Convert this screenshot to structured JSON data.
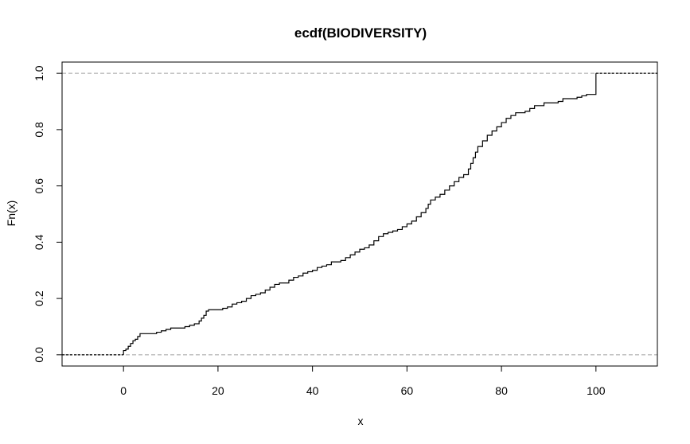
{
  "chart_data": {
    "type": "line",
    "title": "ecdf(BIODIVERSITY)",
    "xlabel": "x",
    "ylabel": "Fn(x)",
    "xlim": [
      -13,
      113
    ],
    "ylim": [
      -0.04,
      1.04
    ],
    "x_ticks": [
      0,
      20,
      40,
      60,
      80,
      100
    ],
    "y_ticks": [
      0.0,
      0.2,
      0.4,
      0.6,
      0.8,
      1.0
    ],
    "x_tick_labels": [
      "0",
      "20",
      "40",
      "60",
      "80",
      "100"
    ],
    "y_tick_labels": [
      "0.0",
      "0.2",
      "0.4",
      "0.6",
      "0.8",
      "1.0"
    ],
    "reference_lines": [
      0,
      1
    ],
    "grid": false,
    "series": [
      {
        "points": [
          [
            0,
            0.015
          ],
          [
            0.5,
            0.02
          ],
          [
            1,
            0.03
          ],
          [
            1.5,
            0.04
          ],
          [
            2,
            0.05
          ],
          [
            2.5,
            0.055
          ],
          [
            3,
            0.065
          ],
          [
            3.5,
            0.075
          ],
          [
            7,
            0.08
          ],
          [
            8,
            0.085
          ],
          [
            9,
            0.09
          ],
          [
            10,
            0.095
          ],
          [
            13,
            0.1
          ],
          [
            14,
            0.105
          ],
          [
            15,
            0.11
          ],
          [
            16,
            0.12
          ],
          [
            16.5,
            0.13
          ],
          [
            17,
            0.14
          ],
          [
            17.5,
            0.155
          ],
          [
            18,
            0.16
          ],
          [
            21,
            0.165
          ],
          [
            22,
            0.17
          ],
          [
            23,
            0.18
          ],
          [
            24,
            0.185
          ],
          [
            25,
            0.19
          ],
          [
            26,
            0.2
          ],
          [
            27,
            0.21
          ],
          [
            28,
            0.215
          ],
          [
            29,
            0.22
          ],
          [
            30,
            0.23
          ],
          [
            31,
            0.24
          ],
          [
            32,
            0.25
          ],
          [
            33,
            0.255
          ],
          [
            35,
            0.265
          ],
          [
            36,
            0.275
          ],
          [
            37,
            0.28
          ],
          [
            38,
            0.29
          ],
          [
            39,
            0.295
          ],
          [
            40,
            0.3
          ],
          [
            41,
            0.31
          ],
          [
            42,
            0.315
          ],
          [
            43,
            0.32
          ],
          [
            44,
            0.33
          ],
          [
            46,
            0.335
          ],
          [
            47,
            0.345
          ],
          [
            48,
            0.355
          ],
          [
            49,
            0.365
          ],
          [
            50,
            0.375
          ],
          [
            51,
            0.38
          ],
          [
            52,
            0.39
          ],
          [
            53,
            0.405
          ],
          [
            54,
            0.42
          ],
          [
            55,
            0.43
          ],
          [
            56,
            0.435
          ],
          [
            57,
            0.44
          ],
          [
            58,
            0.445
          ],
          [
            59,
            0.455
          ],
          [
            60,
            0.465
          ],
          [
            61,
            0.475
          ],
          [
            62,
            0.49
          ],
          [
            63,
            0.505
          ],
          [
            64,
            0.52
          ],
          [
            64.5,
            0.535
          ],
          [
            65,
            0.55
          ],
          [
            66,
            0.56
          ],
          [
            67,
            0.57
          ],
          [
            68,
            0.585
          ],
          [
            69,
            0.6
          ],
          [
            70,
            0.615
          ],
          [
            71,
            0.63
          ],
          [
            72,
            0.64
          ],
          [
            73,
            0.66
          ],
          [
            73.5,
            0.68
          ],
          [
            74,
            0.7
          ],
          [
            74.5,
            0.72
          ],
          [
            75,
            0.74
          ],
          [
            76,
            0.76
          ],
          [
            77,
            0.78
          ],
          [
            78,
            0.795
          ],
          [
            79,
            0.81
          ],
          [
            80,
            0.825
          ],
          [
            81,
            0.84
          ],
          [
            82,
            0.85
          ],
          [
            83,
            0.86
          ],
          [
            85,
            0.865
          ],
          [
            86,
            0.875
          ],
          [
            87,
            0.885
          ],
          [
            89,
            0.895
          ],
          [
            92,
            0.9
          ],
          [
            93,
            0.91
          ],
          [
            96,
            0.915
          ],
          [
            97,
            0.92
          ],
          [
            98,
            0.925
          ],
          [
            100,
            1.0
          ]
        ]
      }
    ]
  }
}
